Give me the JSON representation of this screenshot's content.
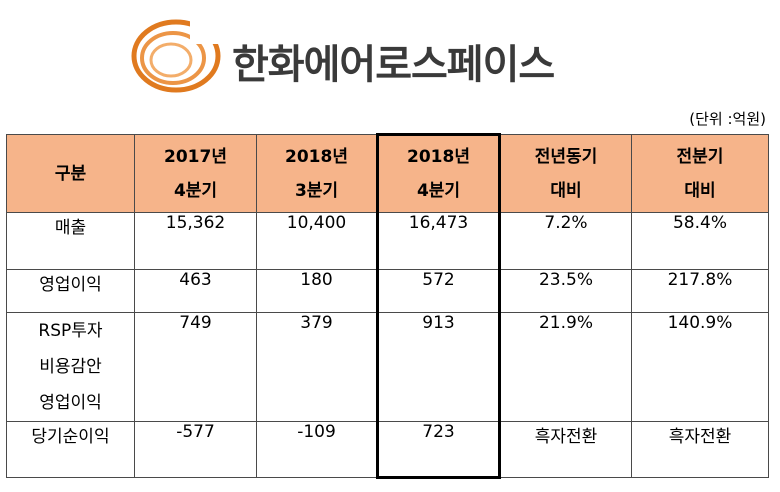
{
  "brand": {
    "name": "한화에어로스페이스",
    "accent": "#e07a1f"
  },
  "unit": "(단위 :억원)",
  "table": {
    "headers": [
      [
        "구분"
      ],
      [
        "2017년",
        "4분기"
      ],
      [
        "2018년",
        "3분기"
      ],
      [
        "2018년",
        "4분기"
      ],
      [
        "전년동기",
        "대비"
      ],
      [
        "전분기",
        "대비"
      ]
    ],
    "rows": [
      {
        "label": [
          "매출"
        ],
        "values": [
          "15,362",
          "10,400",
          "16,473",
          "7.2%",
          "58.4%"
        ]
      },
      {
        "label": [
          "영업이익"
        ],
        "values": [
          "463",
          "180",
          "572",
          "23.5%",
          "217.8%"
        ]
      },
      {
        "label": [
          "RSP투자",
          "비용감안",
          "영업이익"
        ],
        "values": [
          "749",
          "379",
          "913",
          "21.9%",
          "140.9%"
        ]
      },
      {
        "label": [
          "당기순이익"
        ],
        "values": [
          "-577",
          "-109",
          "723",
          "흑자전환",
          "흑자전환"
        ]
      }
    ],
    "header_color": "#f6b48a"
  }
}
